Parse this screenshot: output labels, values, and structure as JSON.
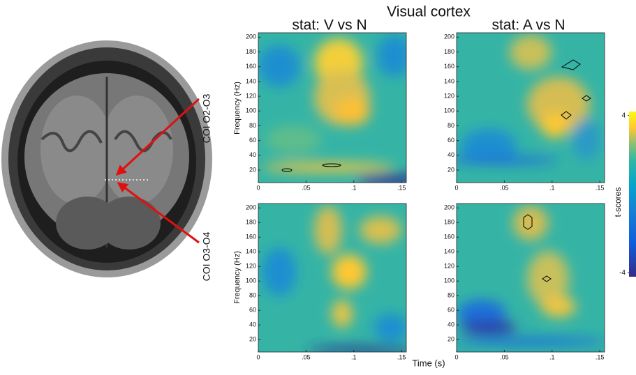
{
  "figure": {
    "title": "Visual cortex",
    "columns": [
      "stat: V vs N",
      "stat: A vs N"
    ],
    "x_label": "Time (s)",
    "y_label": "Frequency (Hz)",
    "xlim": [
      0,
      0.155
    ],
    "ylim": [
      3,
      206
    ],
    "xticks": [
      0,
      {
        "value": 0.05,
        "label": ".05"
      },
      {
        "value": 0.1,
        "label": ".1"
      },
      {
        "value": 0.15,
        "label": ".15"
      }
    ],
    "yticks": [
      20,
      40,
      60,
      80,
      100,
      120,
      140,
      160,
      180,
      200
    ],
    "colorbar": {
      "label": "t-scores",
      "ylim": [
        -4.2,
        4.2
      ],
      "ticks": [
        4,
        -4
      ]
    },
    "channels": [
      "COI O2-O3",
      "COI O3-O4"
    ]
  }
}
